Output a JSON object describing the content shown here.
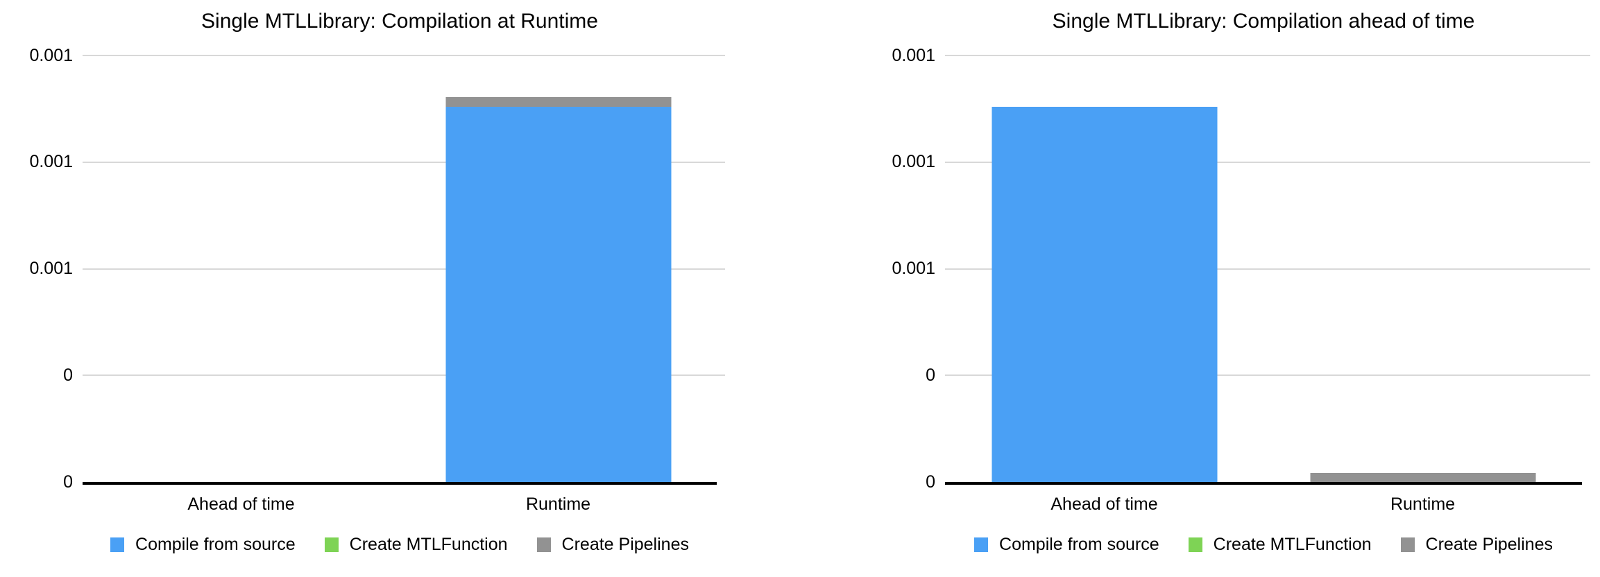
{
  "colors": {
    "series_blue": "#4AA0F5",
    "series_green": "#7ED355",
    "series_gray": "#929292",
    "gridline": "#D8D8D8",
    "axis": "#000000",
    "text": "#000000",
    "background": "#FFFFFF"
  },
  "chart_data": [
    {
      "type": "bar",
      "stacked": true,
      "title": "Single MTLLibrary: Compilation at Runtime",
      "categories": [
        "Ahead of time",
        "Runtime"
      ],
      "series": [
        {
          "name": "Compile from source",
          "color": "#4AA0F5",
          "values": [
            0,
            0.001055
          ]
        },
        {
          "name": "Create MTLFunction",
          "color": "#7ED355",
          "values": [
            0,
            0
          ]
        },
        {
          "name": "Create Pipelines",
          "color": "#929292",
          "values": [
            0,
            2.8e-05
          ]
        }
      ],
      "ylim": [
        0,
        0.0012
      ],
      "y_tick_labels": [
        "0.001",
        "0.001",
        "0.001",
        "0",
        "0"
      ],
      "grid": true,
      "legend_position": "bottom"
    },
    {
      "type": "bar",
      "stacked": true,
      "title": "Single MTLLibrary: Compilation ahead of time",
      "categories": [
        "Ahead of time",
        "Runtime"
      ],
      "series": [
        {
          "name": "Compile from source",
          "color": "#4AA0F5",
          "values": [
            0.001055,
            0
          ]
        },
        {
          "name": "Create MTLFunction",
          "color": "#7ED355",
          "values": [
            0,
            0
          ]
        },
        {
          "name": "Create Pipelines",
          "color": "#929292",
          "values": [
            0,
            2.6e-05
          ]
        }
      ],
      "ylim": [
        0,
        0.0012
      ],
      "y_tick_labels": [
        "0.001",
        "0.001",
        "0.001",
        "0",
        "0"
      ],
      "grid": true,
      "legend_position": "bottom"
    }
  ]
}
